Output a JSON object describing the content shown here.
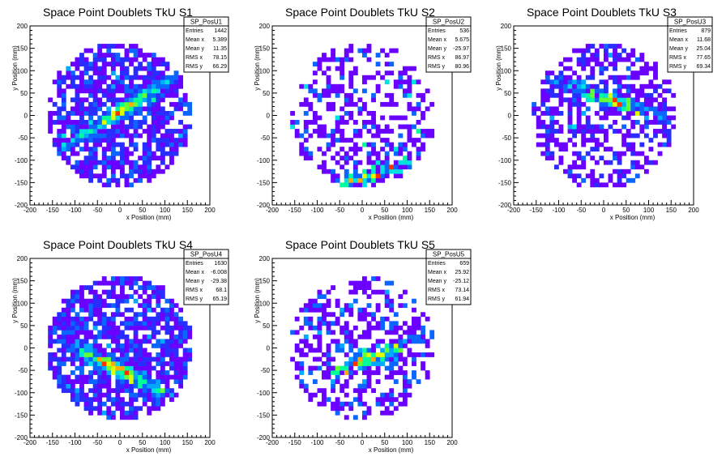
{
  "chart_data": [
    {
      "type": "heatmap",
      "title": "Space Point Doublets TkU S1",
      "xlabel": "x Position (mm)",
      "ylabel": "y Position (mm)",
      "xlim": [
        -200,
        200
      ],
      "ylim": [
        -200,
        200
      ],
      "xticks": [
        -200,
        -150,
        -100,
        -50,
        0,
        50,
        100,
        150,
        200
      ],
      "yticks": [
        -200,
        -150,
        -100,
        -50,
        0,
        50,
        100,
        150,
        200
      ],
      "stats": {
        "name": "SP_PosU1",
        "rows": [
          {
            "label": "Entries",
            "value": "1442"
          },
          {
            "label": "Mean x",
            "value": "5.389"
          },
          {
            "label": "Mean y",
            "value": "11.35"
          },
          {
            "label": "RMS x",
            "value": "78.15"
          },
          {
            "label": "RMS y",
            "value": "66.29"
          }
        ]
      },
      "distribution": {
        "entries": 1442,
        "mean_x": 5.389,
        "mean_y": 11.35,
        "rms_x": 78.15,
        "rms_y": 66.29,
        "band": {
          "slope": 0.62,
          "intercept": 8
        }
      }
    },
    {
      "type": "heatmap",
      "title": "Space Point Doublets TkU S2",
      "xlabel": "x Position (mm)",
      "ylabel": "y Position (mm)",
      "xlim": [
        -200,
        200
      ],
      "ylim": [
        -200,
        200
      ],
      "xticks": [
        -200,
        -150,
        -100,
        -50,
        0,
        50,
        100,
        150,
        200
      ],
      "yticks": [
        -200,
        -150,
        -100,
        -50,
        0,
        50,
        100,
        150,
        200
      ],
      "stats": {
        "name": "SP_PosU2",
        "rows": [
          {
            "label": "Entries",
            "value": "536"
          },
          {
            "label": "Mean x",
            "value": "5.675"
          },
          {
            "label": "Mean y",
            "value": "-25.97"
          },
          {
            "label": "RMS x",
            "value": "86.97"
          },
          {
            "label": "RMS y",
            "value": "80.96"
          }
        ]
      },
      "distribution": {
        "entries": 536,
        "mean_x": 5.675,
        "mean_y": -25.97,
        "rms_x": 86.97,
        "rms_y": 80.96,
        "band": {
          "slope": 0.3,
          "intercept": -140
        }
      }
    },
    {
      "type": "heatmap",
      "title": "Space Point Doublets TkU S3",
      "xlabel": "x Position (mm)",
      "ylabel": "y Position (mm)",
      "xlim": [
        -200,
        200
      ],
      "ylim": [
        -200,
        200
      ],
      "xticks": [
        -200,
        -150,
        -100,
        -50,
        0,
        50,
        100,
        150,
        200
      ],
      "yticks": [
        -200,
        -150,
        -100,
        -50,
        0,
        50,
        100,
        150,
        200
      ],
      "stats": {
        "name": "SP_PosU3",
        "rows": [
          {
            "label": "Entries",
            "value": "879"
          },
          {
            "label": "Mean x",
            "value": "11.68"
          },
          {
            "label": "Mean y",
            "value": "25.04"
          },
          {
            "label": "RMS x",
            "value": "77.65"
          },
          {
            "label": "RMS y",
            "value": "69.34"
          }
        ]
      },
      "distribution": {
        "entries": 879,
        "mean_x": 11.68,
        "mean_y": 25.04,
        "rms_x": 77.65,
        "rms_y": 69.34,
        "band": {
          "slope": -0.3,
          "intercept": 40
        }
      }
    },
    {
      "type": "heatmap",
      "title": "Space Point Doublets TkU S4",
      "xlabel": "x Position (mm)",
      "ylabel": "y Position (mm)",
      "xlim": [
        -200,
        200
      ],
      "ylim": [
        -200,
        200
      ],
      "xticks": [
        -200,
        -150,
        -100,
        -50,
        0,
        50,
        100,
        150,
        200
      ],
      "yticks": [
        -200,
        -150,
        -100,
        -50,
        0,
        50,
        100,
        150,
        200
      ],
      "stats": {
        "name": "SP_PosU4",
        "rows": [
          {
            "label": "Entries",
            "value": "1630"
          },
          {
            "label": "Mean x",
            "value": "-6.008"
          },
          {
            "label": "Mean y",
            "value": "-29.38"
          },
          {
            "label": "RMS x",
            "value": "68.1"
          },
          {
            "label": "RMS y",
            "value": "65.19"
          }
        ]
      },
      "distribution": {
        "entries": 1630,
        "mean_x": -6.008,
        "mean_y": -29.38,
        "rms_x": 68.1,
        "rms_y": 65.19,
        "band": {
          "slope": -0.5,
          "intercept": -50
        }
      }
    },
    {
      "type": "heatmap",
      "title": "Space Point Doublets TkU S5",
      "xlabel": "x Position (mm)",
      "ylabel": "y Position (mm)",
      "xlim": [
        -200,
        200
      ],
      "ylim": [
        -200,
        200
      ],
      "xticks": [
        -200,
        -150,
        -100,
        -50,
        0,
        50,
        100,
        150,
        200
      ],
      "yticks": [
        -200,
        -150,
        -100,
        -50,
        0,
        50,
        100,
        150,
        200
      ],
      "stats": {
        "name": "SP_PosU5",
        "rows": [
          {
            "label": "Entries",
            "value": "659"
          },
          {
            "label": "Mean x",
            "value": "25.92"
          },
          {
            "label": "Mean y",
            "value": "-25.12"
          },
          {
            "label": "RMS x",
            "value": "73.14"
          },
          {
            "label": "RMS y",
            "value": "61.94"
          }
        ]
      },
      "distribution": {
        "entries": 659,
        "mean_x": 25.92,
        "mean_y": -25.12,
        "rms_x": 73.14,
        "rms_y": 61.94,
        "band": {
          "slope": 0.4,
          "intercept": -30
        }
      }
    }
  ],
  "palette": [
    "#6a00ff",
    "#2a2dff",
    "#0a66ff",
    "#00a8ff",
    "#00e0e0",
    "#00ff99",
    "#66ff33",
    "#ddff00",
    "#ffaa00",
    "#ff3300"
  ]
}
